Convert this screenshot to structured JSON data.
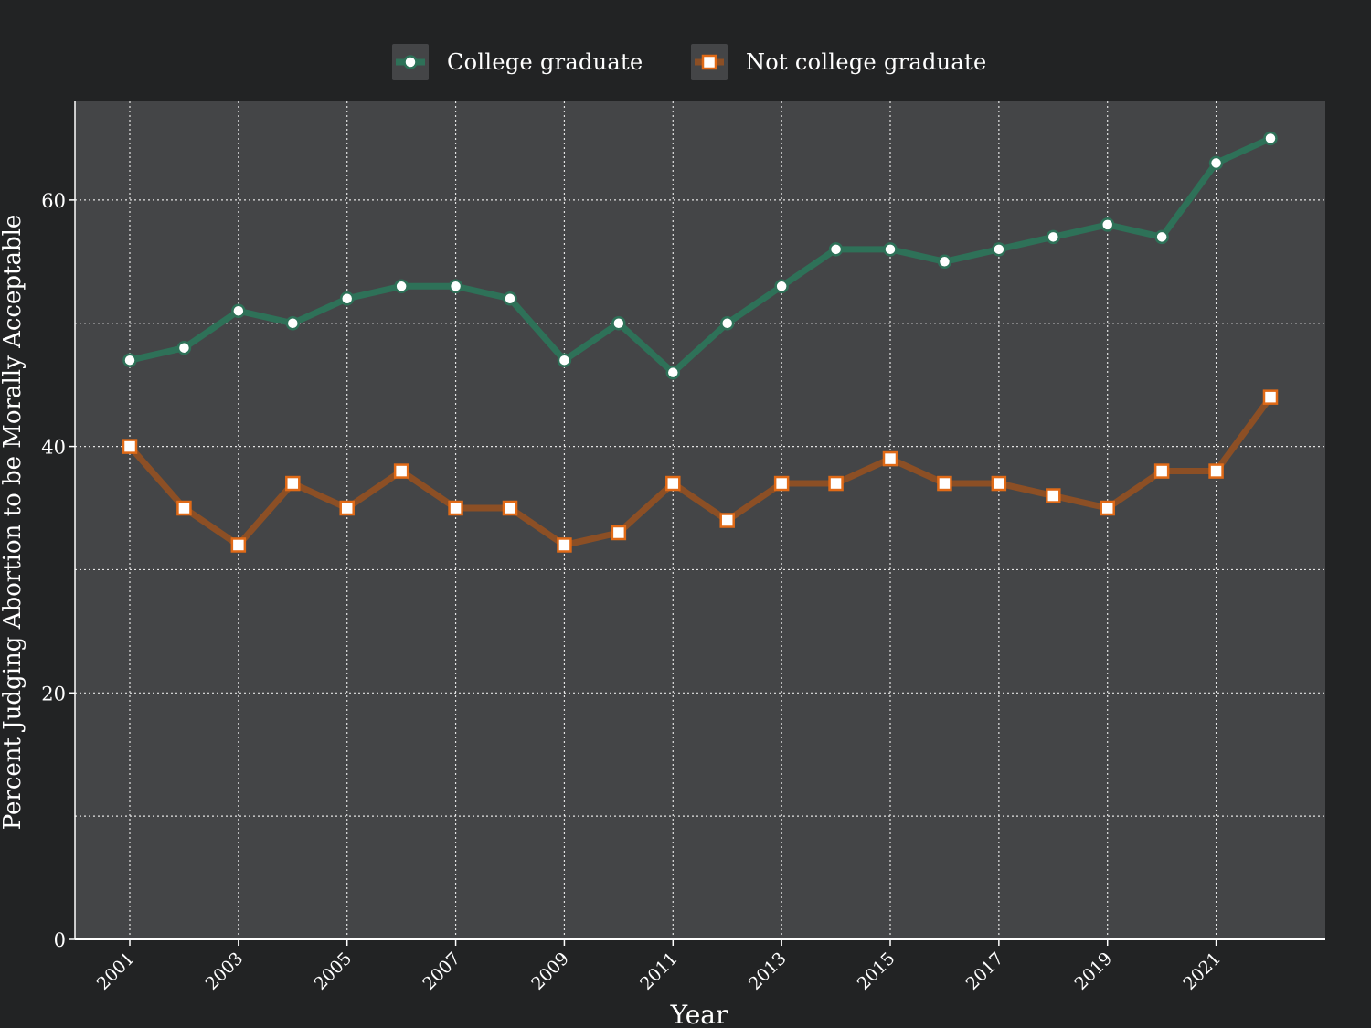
{
  "chart_data": {
    "type": "line",
    "xlabel": "Year",
    "ylabel": "Percent Judging Abortion to be Morally Acceptable",
    "x": [
      2001,
      2002,
      2003,
      2004,
      2005,
      2006,
      2007,
      2008,
      2009,
      2010,
      2011,
      2012,
      2013,
      2014,
      2015,
      2016,
      2017,
      2018,
      2019,
      2020,
      2021,
      2022
    ],
    "x_ticks": [
      "2001",
      "2003",
      "2005",
      "2007",
      "2009",
      "2011",
      "2013",
      "2015",
      "2017",
      "2019",
      "2021"
    ],
    "y_ticks": [
      "0",
      "20",
      "40",
      "60"
    ],
    "ylim": [
      0,
      68
    ],
    "grid": true,
    "legend_position": "top-center",
    "series": [
      {
        "name": "College graduate",
        "color": "#2e7158",
        "marker": "circle",
        "values": [
          47,
          48,
          51,
          50,
          52,
          53,
          53,
          52,
          47,
          50,
          46,
          50,
          53,
          56,
          56,
          55,
          56,
          57,
          58,
          57,
          63,
          65
        ]
      },
      {
        "name": "Not college graduate",
        "color": "#8c4f25",
        "marker": "square",
        "values": [
          40,
          35,
          32,
          37,
          35,
          38,
          35,
          35,
          32,
          33,
          37,
          34,
          37,
          37,
          39,
          37,
          37,
          36,
          35,
          38,
          38,
          44
        ]
      }
    ]
  },
  "colors": {
    "background": "#222324",
    "plot_background": "#444547",
    "college_marker_edge": "#2e7158",
    "noncollege_marker_edge": "#e06a17"
  }
}
